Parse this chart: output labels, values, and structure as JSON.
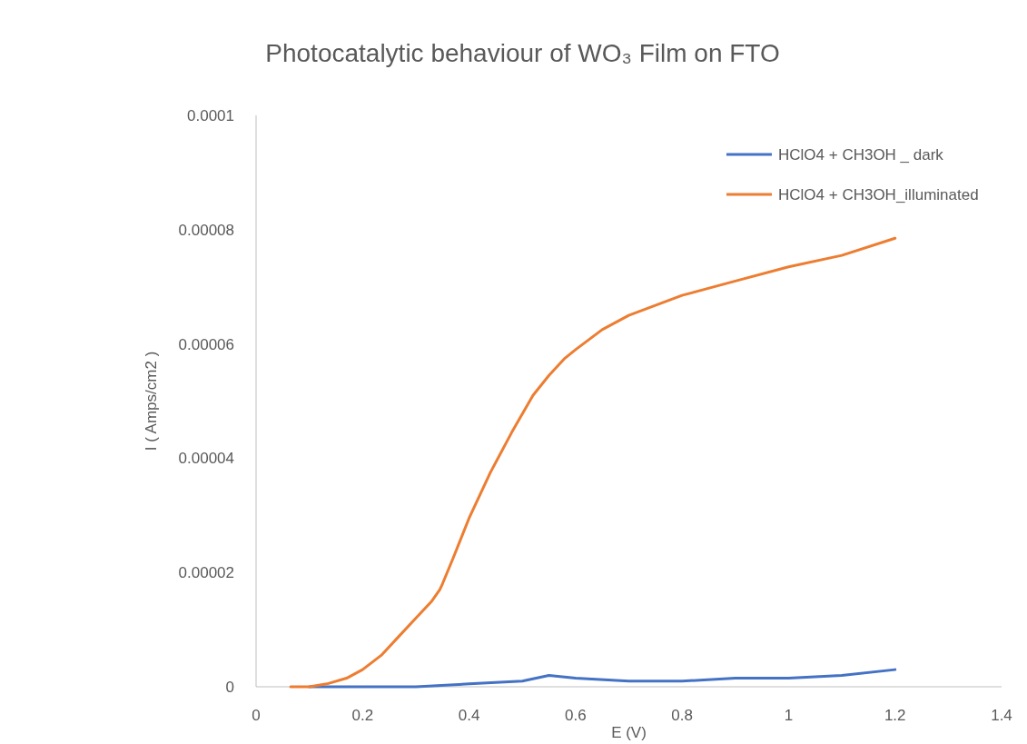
{
  "chart_data": {
    "type": "line",
    "title": "Photocatalytic behaviour of WO₃ Film on FTO",
    "xlabel": "E (V)",
    "ylabel": "I ( Amps/cm2 )",
    "xlim": [
      0,
      1.4
    ],
    "xticks": [
      0,
      0.2,
      0.4,
      0.6,
      0.8,
      1,
      1.2,
      1.4
    ],
    "ylim": [
      0,
      0.0001
    ],
    "yticks": [
      {
        "value": 0,
        "label": "0"
      },
      {
        "value": 2e-05,
        "label": "0.00002"
      },
      {
        "value": 4e-05,
        "label": "0.00004"
      },
      {
        "value": 6e-05,
        "label": "0.00006"
      },
      {
        "value": 8e-05,
        "label": "0.00008"
      },
      {
        "value": 0.0001,
        "label": "0.0001"
      }
    ],
    "grid": false,
    "legend": "top right",
    "marker": "none",
    "line_style": "solid",
    "series": [
      {
        "name": "HClO4 + CH3OH _ dark",
        "color": "#4472c4",
        "x": [
          0.1,
          0.2,
          0.3,
          0.4,
          0.5,
          0.55,
          0.6,
          0.7,
          0.8,
          0.9,
          1.0,
          1.1,
          1.2
        ],
        "values": [
          0,
          0,
          0,
          5e-07,
          1e-06,
          2e-06,
          1.5e-06,
          1e-06,
          1e-06,
          1.5e-06,
          1.5e-06,
          2e-06,
          3e-06
        ]
      },
      {
        "name": "HClO4 + CH3OH_illuminated",
        "color": "#ed7d31",
        "x": [
          0.065,
          0.1,
          0.133,
          0.17,
          0.2,
          0.235,
          0.27,
          0.3,
          0.33,
          0.345,
          0.35,
          0.37,
          0.4,
          0.44,
          0.48,
          0.52,
          0.55,
          0.58,
          0.6,
          0.65,
          0.7,
          0.8,
          0.9,
          1.0,
          1.1,
          1.2
        ],
        "values": [
          0,
          0,
          5e-07,
          1.5e-06,
          3e-06,
          5.5e-06,
          9e-06,
          1.2e-05,
          1.5e-05,
          1.7e-05,
          1.8e-05,
          2.25e-05,
          2.95e-05,
          3.75e-05,
          4.45e-05,
          5.1e-05,
          5.45e-05,
          5.75e-05,
          5.9e-05,
          6.25e-05,
          6.5e-05,
          6.85e-05,
          7.1e-05,
          7.35e-05,
          7.55e-05,
          7.85e-05
        ]
      }
    ]
  }
}
